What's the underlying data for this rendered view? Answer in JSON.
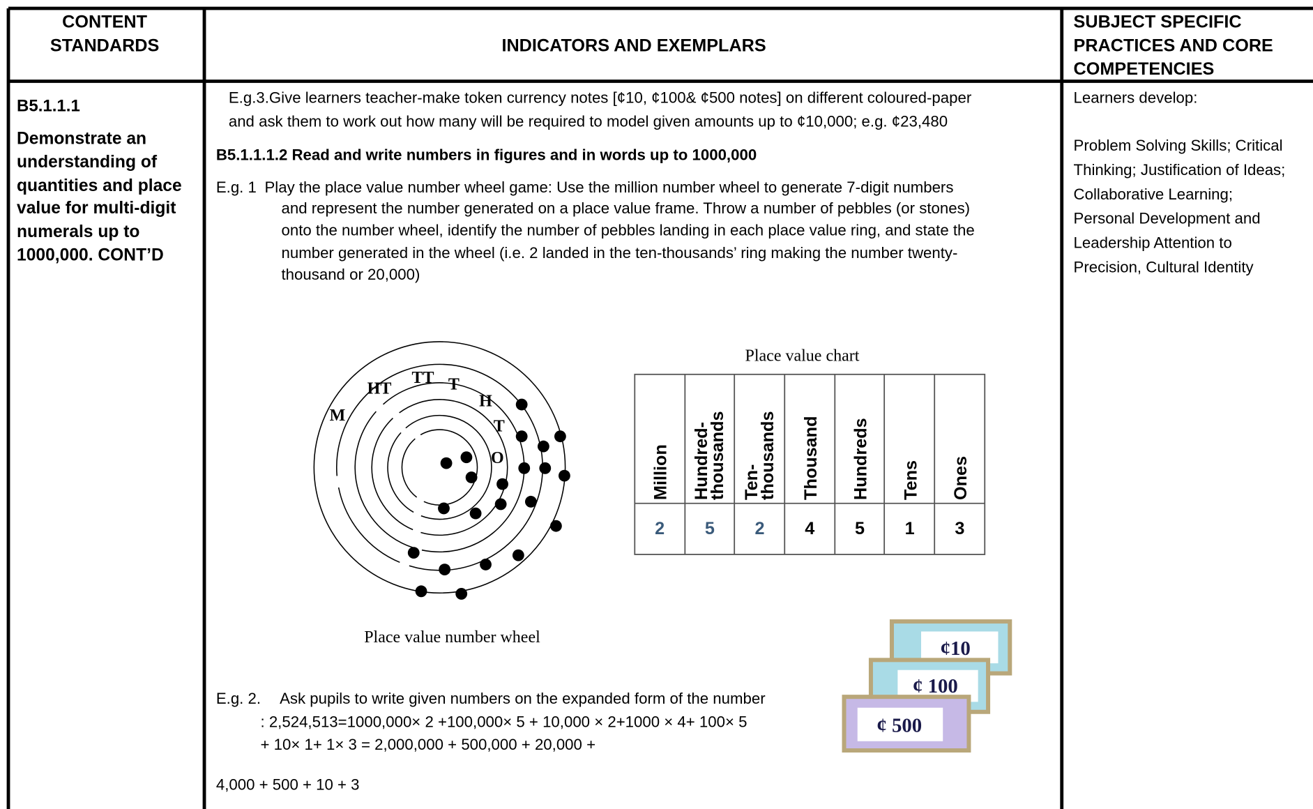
{
  "header": {
    "content_standards": [
      "CONTENT",
      "STANDARDS"
    ],
    "indicators": "INDICATORS AND EXEMPLARS",
    "practices": [
      "SUBJECT SPECIFIC",
      "PRACTICES AND CORE",
      "COMPETENCIES"
    ]
  },
  "standard": {
    "code": "B5.1.1.1",
    "text": [
      "Demonstrate an",
      "understanding of",
      "quantities and place",
      "value for multi-digit",
      "numerals up to",
      "1000,000. CONT’D"
    ]
  },
  "indicators": {
    "eg3": [
      "E.g.3.Give learners teacher-make token currency notes [¢10, ¢100& ¢500 notes] on different coloured-paper",
      "and ask them to work out how many will be required to model given amounts up to ¢10,000; e.g. ¢23,480"
    ],
    "heading": "B5.1.1.1.2 Read and write numbers in figures and in words up to 1000,000",
    "eg1_label": "E.g. 1",
    "eg1": [
      "Play the place value number wheel game: Use the million number wheel to generate 7-digit numbers",
      "and represent the number generated on a place value frame. Throw a number of pebbles (or stones)",
      "onto the number wheel, identify the number of pebbles landing in each place value ring, and state the",
      "number generated in the wheel (i.e. 2 landed in the ten-thousands’ ring making the number twenty-",
      "thousand or 20,000)"
    ],
    "wheel": {
      "labels": [
        "M",
        "HT",
        "TT",
        "T",
        "H",
        "T",
        "O"
      ],
      "caption": "Place value number wheel"
    },
    "chart": {
      "title": "Place value chart",
      "columns": [
        [
          "Million"
        ],
        [
          "Hundred-",
          "thousands"
        ],
        [
          "Ten-",
          "thousands"
        ],
        [
          "Thousand"
        ],
        [
          "Hundreds"
        ],
        [
          "Tens"
        ],
        [
          "Ones"
        ]
      ],
      "digits": [
        2,
        5,
        2,
        4,
        5,
        1,
        3
      ]
    },
    "notes": [
      "¢10",
      "¢ 100",
      "¢ 500"
    ],
    "eg2_label": "E.g. 2.",
    "eg2": [
      "Ask pupils to write given numbers on the expanded form of the number",
      ": 2,524,513=1000,000× 2  +100,000× 5 + 10,000 × 2+1000 × 4+ 100× 5",
      "+ 10× 1+ 1× 3 = 2,000,000 + 500,000 + 20,000 +"
    ],
    "eg2_end": "4,000 + 500 + 10 + 3"
  },
  "practices": {
    "intro": "Learners develop:",
    "list": [
      "Problem Solving Skills; Critical",
      "Thinking; Justification of Ideas;",
      "Collaborative Learning;",
      "Personal Development and",
      "Leadership Attention to",
      "Precision, Cultural Identity"
    ]
  }
}
